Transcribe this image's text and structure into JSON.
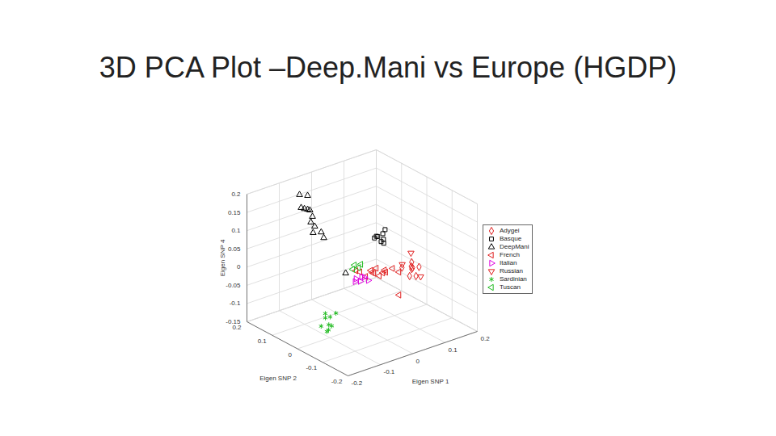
{
  "chart_data": {
    "type": "scatter",
    "title": "3D PCA Plot –Deep.Mani vs Europe (HGDP)",
    "x_label": "Eigen SNP 1",
    "y_label": "Eigen SNP 2",
    "z_label": "Eigen SNP 4",
    "xlim": [
      -0.2,
      0.2
    ],
    "ylim": [
      -0.2,
      0.2
    ],
    "zlim": [
      -0.15,
      0.2
    ],
    "xticks": [
      -0.2,
      -0.1,
      0,
      0.1,
      0.2
    ],
    "yticks": [
      -0.2,
      -0.1,
      0,
      0.1,
      0.2
    ],
    "zticks": [
      -0.15,
      -0.1,
      -0.05,
      0,
      0.05,
      0.1,
      0.15,
      0.2
    ],
    "grid": true,
    "legend": "right",
    "series": [
      {
        "name": "Adygei",
        "color": "#e02020",
        "marker": "diamond",
        "x": [
          0.131,
          0.144,
          0.156,
          0.169,
          0.151,
          0.161,
          0.176,
          0.139
        ],
        "y": [
          0.01,
          -0.01,
          0,
          0.02,
          -0.02,
          0.01,
          0,
          -0.01
        ],
        "z": [
          -0.032,
          -0.025,
          -0.036,
          -0.051,
          -0.05,
          -0.026,
          -0.04,
          -0.05
        ]
      },
      {
        "name": "Basque",
        "color": "#000000",
        "marker": "square",
        "x": [
          0.083,
          0.095,
          0.09,
          0.103,
          0.085,
          0.105,
          0.098,
          0.11
        ],
        "y": [
          0.05,
          0.06,
          0.04,
          0.05,
          0.06,
          0.05,
          0.04,
          0.05
        ],
        "z": [
          0.054,
          0.046,
          0.041,
          0.055,
          0.045,
          0.039,
          0.034,
          0.064
        ]
      },
      {
        "name": "DeepMani",
        "color": "#000000",
        "marker": "triangle-up",
        "x": [
          -0.053,
          -0.028,
          -0.048,
          -0.038,
          -0.028,
          -0.021,
          -0.013,
          -0.018,
          -0.006,
          0.014,
          0.022,
          -0.011,
          -0.051
        ],
        "y": [
          0.18,
          0.18,
          0.18,
          0.18,
          0.18,
          0.18,
          0.18,
          0.18,
          0.18,
          0.18,
          0.18,
          0.18,
          0
        ],
        "z": [
          0.161,
          0.151,
          0.124,
          0.118,
          0.113,
          0.109,
          0.089,
          0.075,
          0.06,
          0.038,
          0.02,
          0.044,
          0.012
        ]
      },
      {
        "name": "French",
        "color": "#e02020",
        "marker": "triangle-left",
        "x": [
          -0.019,
          0.001,
          0.019,
          0.031,
          0.044,
          0.056,
          0.069,
          0.081,
          0.094,
          0.036,
          0.011,
          0.061,
          0.106,
          0.114
        ],
        "y": [
          0,
          0.01,
          -0.01,
          0,
          0.01,
          -0.01,
          0,
          0.01,
          0,
          -0.01,
          0,
          0.01,
          -0.01,
          0
        ],
        "z": [
          0.009,
          -0.004,
          0.002,
          -0.011,
          -0.021,
          -0.016,
          -0.016,
          -0.029,
          -0.019,
          0.003,
          -0.016,
          -0.033,
          -0.029,
          -0.098
        ]
      },
      {
        "name": "Italian",
        "color": "#e000e0",
        "marker": "triangle-right",
        "x": [
          -0.019,
          -0.006,
          0.006,
          -0.001,
          0.019,
          -0.014
        ],
        "y": [
          0,
          0,
          0.01,
          -0.01,
          0,
          0.01
        ],
        "z": [
          -0.013,
          -0.024,
          -0.019,
          -0.01,
          -0.029,
          -0.026
        ]
      },
      {
        "name": "Russian",
        "color": "#e02020",
        "marker": "triangle-down",
        "x": [
          0.151,
          0.124,
          0.181
        ],
        "y": [
          0,
          0,
          0
        ],
        "z": [
          0.006,
          -0.017,
          -0.068
        ]
      },
      {
        "name": "Sardinian",
        "color": "#22bb22",
        "marker": "asterisk",
        "x": [
          -0.153,
          -0.145,
          -0.138,
          -0.15,
          -0.133,
          -0.158,
          -0.143,
          -0.128,
          -0.148
        ],
        "y": [
          -0.05,
          -0.04,
          -0.05,
          -0.06,
          -0.05,
          -0.04,
          -0.05,
          -0.06,
          -0.05
        ],
        "z": [
          -0.049,
          -0.067,
          -0.063,
          -0.077,
          -0.089,
          -0.086,
          -0.097,
          -0.052,
          -0.1
        ]
      },
      {
        "name": "Tuscan",
        "color": "#22bb22",
        "marker": "triangle-left",
        "x": [
          -0.024,
          -0.011,
          -0.029,
          -0.004
        ],
        "y": [
          0,
          0,
          0,
          0
        ],
        "z": [
          0.026,
          0.015,
          0.016,
          0.022
        ]
      }
    ]
  }
}
